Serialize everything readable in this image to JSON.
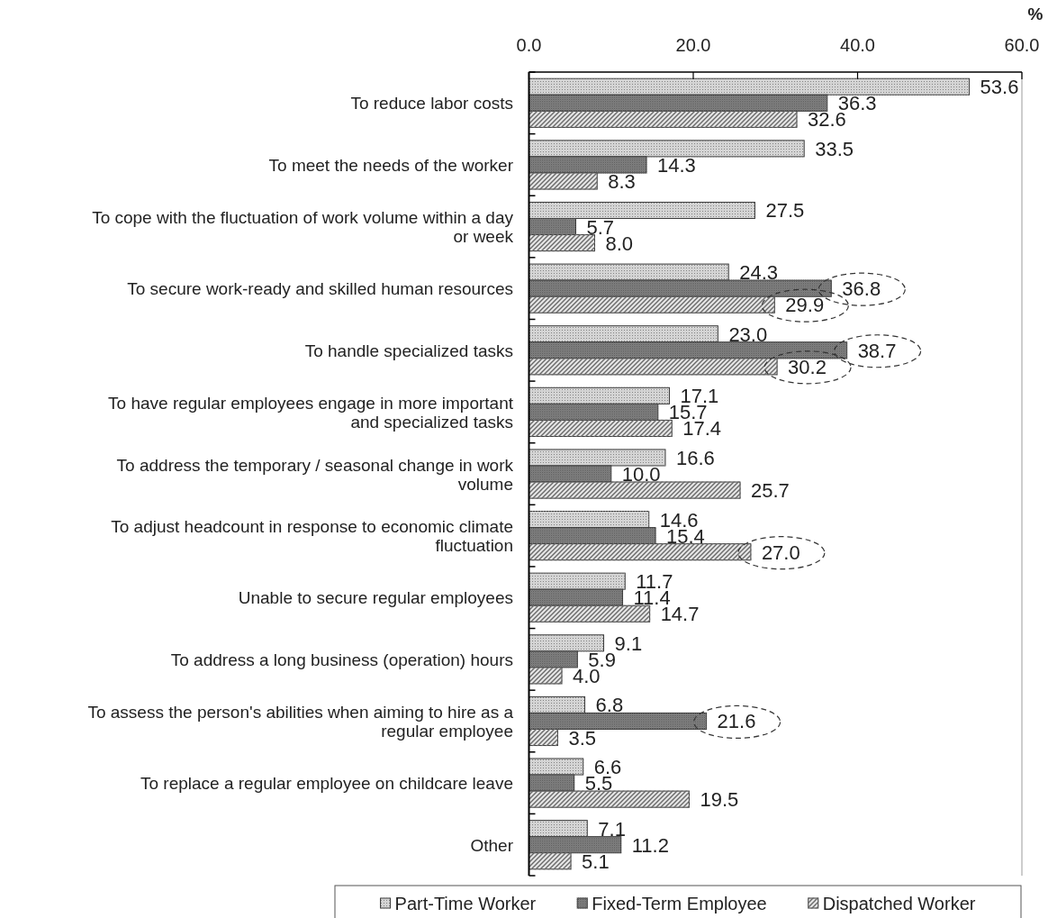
{
  "chart_data": {
    "type": "bar",
    "orientation": "horizontal",
    "xlabel": "%",
    "categories": [
      "To reduce labor costs",
      "To meet the needs of the worker",
      "To cope with the fluctuation of work volume within a day or week",
      "To secure work-ready and skilled human resources",
      "To handle specialized tasks",
      "To have regular employees engage in more important and specialized tasks",
      "To address the temporary / seasonal change in work volume",
      "To adjust headcount in response to economic climate fluctuation",
      "Unable to secure regular employees",
      "To address a long business (operation) hours",
      "To assess the person's abilities when aiming to hire as a regular employee",
      "To replace a regular employee on childcare leave",
      "Other"
    ],
    "series": [
      {
        "name": "Part-Time Worker",
        "color": "#d4d4d4",
        "values": [
          53.6,
          33.5,
          27.5,
          24.3,
          23.0,
          17.1,
          16.6,
          14.6,
          11.7,
          9.1,
          6.8,
          6.6,
          7.1
        ],
        "value_labels": [
          "53.6",
          "33.5",
          "27.5",
          "24.3",
          "23.0",
          "17.1",
          "16.6",
          "14.6",
          "11.7",
          "9.1",
          "6.8",
          "6.6",
          "7.1"
        ]
      },
      {
        "name": "Fixed-Term Employee",
        "color": "#8c8c8c",
        "values": [
          36.3,
          14.3,
          5.7,
          36.8,
          38.7,
          15.7,
          10.0,
          15.4,
          11.4,
          5.9,
          21.6,
          5.5,
          11.2
        ],
        "value_labels": [
          "36.3",
          "14.3",
          "5.7",
          "36.8",
          "38.7",
          "15.7",
          "10.0",
          "15.4",
          "11.4",
          "5.9",
          "21.6",
          "5.5",
          "11.2"
        ]
      },
      {
        "name": "Dispatched Worker",
        "color": "#e6e6e6",
        "values": [
          32.6,
          8.3,
          8.0,
          29.9,
          30.2,
          17.4,
          25.7,
          27.0,
          14.7,
          4.0,
          3.5,
          19.5,
          5.1
        ],
        "value_labels": [
          "32.6",
          "8.3",
          "8.0",
          "29.9",
          "30.2",
          "17.4",
          "25.7",
          "27.0",
          "14.7",
          "4.0",
          "3.5",
          "19.5",
          "5.1"
        ]
      }
    ],
    "xlim": [
      0,
      60
    ],
    "xticks": [
      {
        "value": 0,
        "label": "0.0"
      },
      {
        "value": 20,
        "label": "20.0"
      },
      {
        "value": 40,
        "label": "40.0"
      },
      {
        "value": 60,
        "label": "60.0"
      }
    ],
    "legend": "bottom"
  }
}
